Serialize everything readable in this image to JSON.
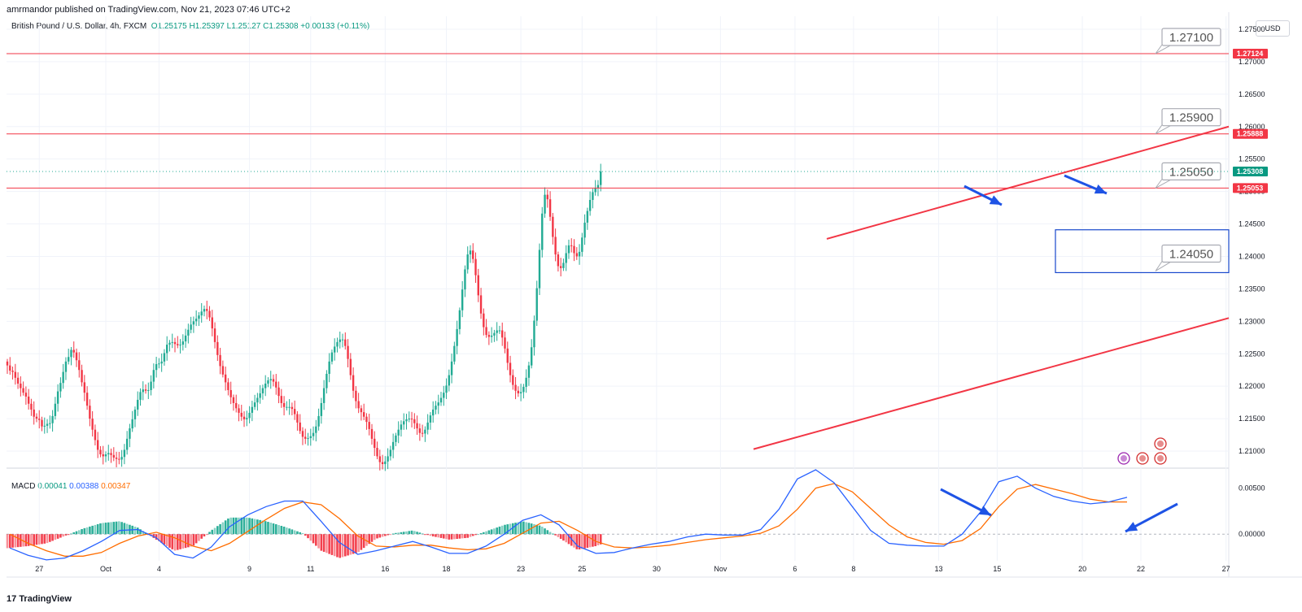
{
  "header": {
    "published": "amrmandor published on TradingView.com, Nov 21, 2023 07:46 UTC+2",
    "symbol": "British Pound / U.S. Dollar, 4h, FXCM",
    "ohlc": {
      "o_label": "O",
      "o": "1.25175",
      "h_label": "H",
      "h": "1.25397",
      "l_label": "L",
      "l": "1.25127",
      "c_label": "C",
      "c": "1.25308",
      "change": "+0.00133 (+0.11%)"
    },
    "currency": "USD"
  },
  "macd_legend": {
    "name": "MACD",
    "hist": "0.00041",
    "macd": "0.00388",
    "signal": "0.00347"
  },
  "footer": {
    "brand": "TradingView"
  },
  "colors": {
    "up": "#22ab94",
    "down": "#f23645",
    "macd": "#2962ff",
    "signal": "#ff6d00",
    "annotation": "#f23645",
    "arrow": "#1e53e5",
    "box": "#1848cc"
  },
  "chart_data": [
    {
      "type": "candlestick",
      "title": "British Pound / U.S. Dollar, 4h, FXCM",
      "yaxis": {
        "ticks": [
          "1.27500",
          "1.27000",
          "1.26500",
          "1.26000",
          "1.25500",
          "1.25000",
          "1.24500",
          "1.24000",
          "1.23500",
          "1.23000",
          "1.22500",
          "1.22000",
          "1.21500",
          "1.21000"
        ],
        "ylim": [
          1.2075,
          1.277
        ]
      },
      "xaxis": {
        "ticks": [
          "27",
          "Oct",
          "4",
          "9",
          "11",
          "16",
          "18",
          "23",
          "25",
          "30",
          "Nov",
          "6",
          "8",
          "13",
          "15",
          "20",
          "22",
          "27"
        ]
      },
      "x_tick_bar_index": [
        12,
        37,
        57,
        91,
        114,
        142,
        165,
        193,
        216,
        244,
        268,
        296,
        318,
        350,
        372,
        404,
        426,
        458
      ],
      "bars_close": [
        1.2232,
        1.2224,
        1.2222,
        1.2213,
        1.2204,
        1.2197,
        1.219,
        1.2184,
        1.2173,
        1.2164,
        1.2153,
        1.215,
        1.2148,
        1.2138,
        1.2139,
        1.2142,
        1.2143,
        1.2154,
        1.2173,
        1.2192,
        1.2205,
        1.2222,
        1.2238,
        1.2245,
        1.2256,
        1.2252,
        1.224,
        1.2225,
        1.2206,
        1.219,
        1.217,
        1.215,
        1.2133,
        1.2117,
        1.2102,
        1.2095,
        1.2092,
        1.2095,
        1.2097,
        1.2094,
        1.209,
        1.2088,
        1.2087,
        1.2091,
        1.2102,
        1.2119,
        1.2135,
        1.2149,
        1.2164,
        1.2179,
        1.2191,
        1.2195,
        1.2193,
        1.2194,
        1.2207,
        1.2225,
        1.2234,
        1.2235,
        1.2238,
        1.2251,
        1.2264,
        1.2267,
        1.2268,
        1.2265,
        1.2263,
        1.2264,
        1.2269,
        1.2278,
        1.2287,
        1.2295,
        1.23,
        1.2304,
        1.2309,
        1.2315,
        1.2319,
        1.2316,
        1.2306,
        1.2289,
        1.2268,
        1.2248,
        1.2231,
        1.2218,
        1.2206,
        1.2194,
        1.2183,
        1.2174,
        1.2166,
        1.2159,
        1.2153,
        1.2149,
        1.2151,
        1.2159,
        1.2168,
        1.2175,
        1.2182,
        1.2189,
        1.2197,
        1.2204,
        1.2209,
        1.2211,
        1.2207,
        1.2198,
        1.2185,
        1.2174,
        1.2168,
        1.2168,
        1.2168,
        1.2165,
        1.2157,
        1.2144,
        1.2131,
        1.2122,
        1.2119,
        1.212,
        1.2123,
        1.2128,
        1.2138,
        1.2154,
        1.2174,
        1.2197,
        1.2219,
        1.2238,
        1.2252,
        1.2261,
        1.2268,
        1.2272,
        1.2272,
        1.2262,
        1.2242,
        1.2217,
        1.2193,
        1.2177,
        1.2166,
        1.216,
        1.2153,
        1.2145,
        1.2134,
        1.2119,
        1.2105,
        1.2092,
        1.2083,
        1.208,
        1.2084,
        1.2092,
        1.2102,
        1.2114,
        1.2124,
        1.2133,
        1.2141,
        1.2146,
        1.2149,
        1.215,
        1.2149,
        1.2143,
        1.2135,
        1.2128,
        1.2127,
        1.2133,
        1.2144,
        1.2155,
        1.2164,
        1.217,
        1.2175,
        1.2182,
        1.219,
        1.2201,
        1.2217,
        1.2238,
        1.2262,
        1.2288,
        1.2317,
        1.2349,
        1.238,
        1.2403,
        1.2409,
        1.2396,
        1.2371,
        1.234,
        1.2312,
        1.2291,
        1.2279,
        1.2276,
        1.2278,
        1.2282,
        1.2286,
        1.2286,
        1.2275,
        1.2258,
        1.2236,
        1.2217,
        1.2202,
        1.2193,
        1.2189,
        1.2191,
        1.2199,
        1.2213,
        1.2232,
        1.226,
        1.2301,
        1.2351,
        1.241,
        1.2466,
        1.2495,
        1.2488,
        1.2461,
        1.243,
        1.2403,
        1.2385,
        1.2382,
        1.239,
        1.2405,
        1.2417,
        1.2416,
        1.2405,
        1.24,
        1.2407,
        1.2429,
        1.2452,
        1.247,
        1.2487,
        1.2499,
        1.2505,
        1.251,
        1.2531
      ],
      "levels": [
        {
          "label": "1.27100",
          "price_tag": "1.27124"
        },
        {
          "label": "1.25900",
          "price_tag": "1.25888"
        },
        {
          "label": "1.25050",
          "price_tag": "1.25053"
        },
        {
          "label": "1.24050"
        }
      ],
      "last_price_tag": "1.25308"
    },
    {
      "type": "bar+line",
      "title": "MACD",
      "yaxis": {
        "ticks": [
          "0.00500",
          "0.00000"
        ],
        "ylim": [
          -0.0029,
          0.007
        ]
      },
      "series": [
        {
          "name": "MACD",
          "values": [
            -0.0015,
            -0.0023,
            -0.0028,
            -0.0026,
            -0.0018,
            -0.0008,
            0.0004,
            0.0005,
            -0.0004,
            -0.0022,
            -0.0026,
            -0.0014,
            0.0008,
            0.0021,
            0.003,
            0.0036,
            0.0036,
            0.0014,
            -0.0009,
            -0.0022,
            -0.0018,
            -0.0013,
            -0.0008,
            -0.0014,
            -0.0021,
            -0.0021,
            -0.0013,
            0.0,
            0.0015,
            0.0021,
            0.001,
            -0.0013,
            -0.0021,
            -0.002,
            -0.0015,
            -0.0011,
            -0.0008,
            -0.0003,
            0.0,
            -0.0001,
            -0.0001,
            0.0005,
            0.0027,
            0.006,
            0.007,
            0.0056,
            0.003,
            0.0004,
            -0.001,
            -0.0012,
            -0.0013,
            -0.0013,
            0.0,
            0.0024,
            0.0057,
            0.0063,
            0.005,
            0.0041,
            0.0036,
            0.0033,
            0.0035,
            0.004
          ]
        },
        {
          "name": "Signal",
          "values": [
            0.0,
            -0.001,
            -0.0018,
            -0.0024,
            -0.0024,
            -0.002,
            -0.001,
            -0.0002,
            0.0002,
            -0.0004,
            -0.0013,
            -0.0018,
            -0.001,
            0.0003,
            0.0016,
            0.0028,
            0.0035,
            0.0032,
            0.0017,
            -0.0002,
            -0.0013,
            -0.0014,
            -0.0012,
            -0.0012,
            -0.0015,
            -0.0017,
            -0.0016,
            -0.001,
            0.0001,
            0.0012,
            0.0014,
            0.0004,
            -0.0008,
            -0.0014,
            -0.0015,
            -0.0014,
            -0.0012,
            -0.0009,
            -0.0006,
            -0.0004,
            -0.0002,
            0.0001,
            0.0009,
            0.0027,
            0.005,
            0.0055,
            0.0046,
            0.0028,
            0.001,
            -0.0003,
            -0.0009,
            -0.0011,
            -0.0007,
            0.0006,
            0.003,
            0.0049,
            0.0054,
            0.0049,
            0.0044,
            0.0038,
            0.0035,
            0.0035
          ]
        }
      ]
    }
  ]
}
